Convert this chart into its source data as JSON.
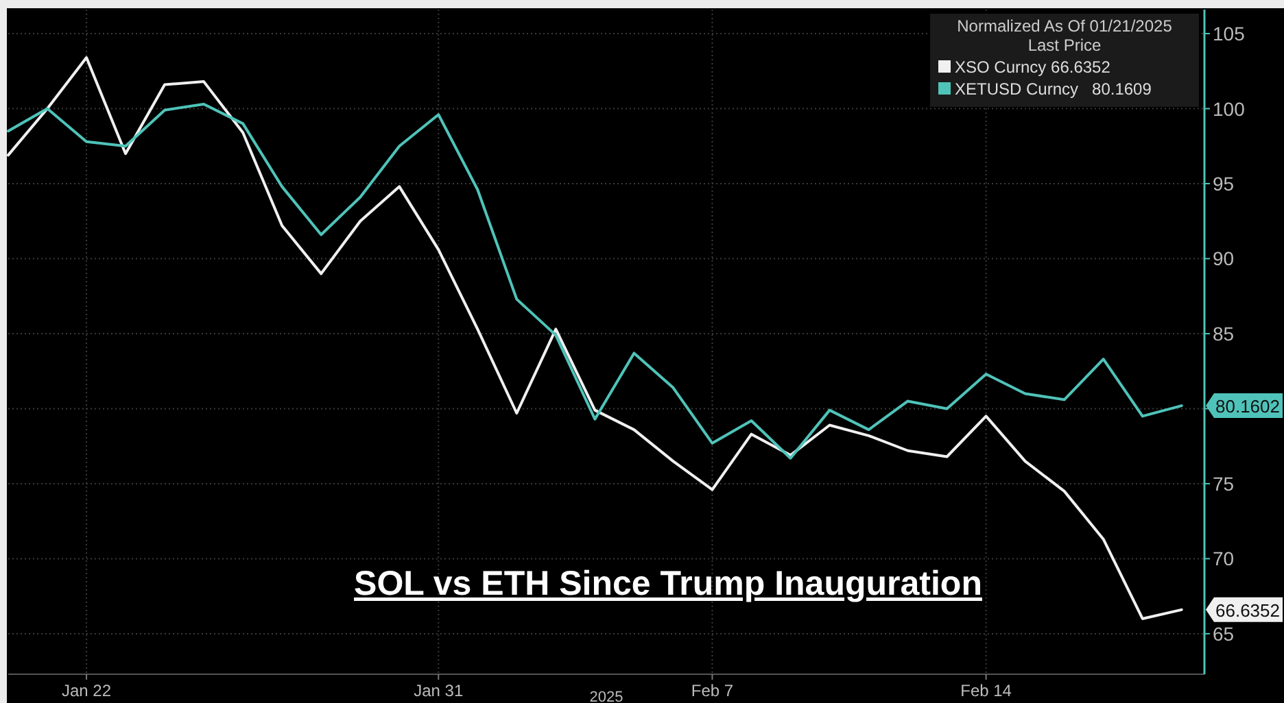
{
  "chart_data": {
    "type": "line",
    "title": "SOL vs ETH Since Trump Inauguration",
    "legend_title": "Normalized As Of 01/21/2025\nLast Price",
    "x": [
      "2025-01-20",
      "2025-01-21",
      "2025-01-22",
      "2025-01-23",
      "2025-01-24",
      "2025-01-25",
      "2025-01-26",
      "2025-01-27",
      "2025-01-28",
      "2025-01-29",
      "2025-01-30",
      "2025-01-31",
      "2025-02-01",
      "2025-02-02",
      "2025-02-03",
      "2025-02-04",
      "2025-02-05",
      "2025-02-06",
      "2025-02-07",
      "2025-02-08",
      "2025-02-09",
      "2025-02-10",
      "2025-02-11",
      "2025-02-12",
      "2025-02-13",
      "2025-02-14",
      "2025-02-15",
      "2025-02-16",
      "2025-02-17",
      "2025-02-18",
      "2025-02-19"
    ],
    "series": [
      {
        "name": "XSO Curncy 66.6352",
        "color": "#f0f0f0",
        "values": [
          96.9,
          100.0,
          103.4,
          97.0,
          101.6,
          101.8,
          98.4,
          92.2,
          89.0,
          92.5,
          94.8,
          90.6,
          85.3,
          79.7,
          85.3,
          79.9,
          78.6,
          76.5,
          74.6,
          78.3,
          76.9,
          78.9,
          78.2,
          77.2,
          76.8,
          79.5,
          76.5,
          74.5,
          71.3,
          66.0,
          66.6
        ]
      },
      {
        "name": "XETUSD Curncy   80.1609",
        "color": "#4fc3b9",
        "values": [
          98.5,
          100.0,
          97.8,
          97.5,
          99.9,
          100.3,
          99.0,
          94.8,
          91.6,
          94.1,
          97.5,
          99.6,
          94.6,
          87.3,
          84.9,
          79.3,
          83.7,
          81.4,
          77.7,
          79.2,
          76.7,
          79.9,
          78.6,
          80.5,
          80.0,
          82.3,
          81.0,
          80.6,
          83.3,
          79.5,
          80.2
        ]
      }
    ],
    "xlim": [
      "2025-01-20",
      "2025-02-19T14:00"
    ],
    "xticks": [
      {
        "value": "2025-01-22",
        "label": "Jan 22"
      },
      {
        "value": "2025-01-31",
        "label": "Jan 31"
      },
      {
        "value": "2025-02-07",
        "label": "Feb 7"
      },
      {
        "value": "2025-02-14",
        "label": "Feb 14"
      }
    ],
    "ylim": [
      62.3,
      106.6
    ],
    "yticks": [
      65,
      70,
      75,
      {
        "value": 80,
        "label": null
      },
      85,
      90,
      95,
      100,
      105
    ],
    "annotations": [
      {
        "text": "80.1602",
        "x": "2025-02-19",
        "y": 80.2
      },
      {
        "text": "66.6352",
        "x": "2025-02-19",
        "y": 66.6
      }
    ],
    "xlabel": "2025",
    "grid": true,
    "legend": "top right",
    "line_style": "solid",
    "marker": "none"
  }
}
